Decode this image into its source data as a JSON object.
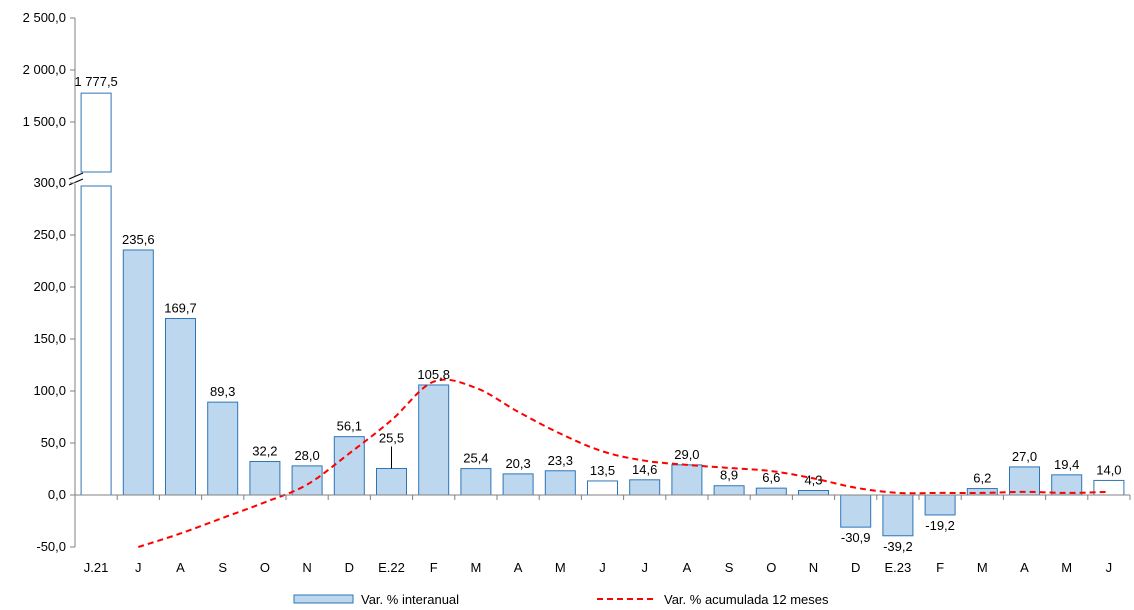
{
  "chart_data": {
    "type": "bar",
    "categories": [
      "J.21",
      "J",
      "A",
      "S",
      "O",
      "N",
      "D",
      "E.22",
      "F",
      "M",
      "A",
      "M",
      "J",
      "J",
      "A",
      "S",
      "O",
      "N",
      "D",
      "E.23",
      "F",
      "M",
      "A",
      "M",
      "J"
    ],
    "series": [
      {
        "name": "Var. % interanual",
        "type": "bar",
        "values": [
          1777.5,
          235.6,
          169.7,
          89.3,
          32.2,
          28.0,
          56.1,
          25.5,
          105.8,
          25.4,
          20.3,
          23.3,
          13.5,
          14.6,
          29.0,
          8.9,
          6.6,
          4.3,
          -30.9,
          -39.2,
          -19.2,
          6.2,
          27.0,
          19.4,
          14.0
        ],
        "labels": [
          "1 777,5",
          "235,6",
          "169,7",
          "89,3",
          "32,2",
          "28,0",
          "56,1",
          "25,5",
          "105,8",
          "25,4",
          "20,3",
          "23,3",
          "13,5",
          "14,6",
          "29,0",
          "8,9",
          "6,6",
          "4,3",
          "-30,9",
          "-39,2",
          "-19,2",
          "6,2",
          "27,0",
          "19,4",
          "14,0"
        ],
        "hollow": [
          true,
          false,
          false,
          false,
          false,
          false,
          false,
          false,
          false,
          false,
          false,
          false,
          true,
          false,
          false,
          false,
          false,
          false,
          false,
          false,
          false,
          false,
          false,
          false,
          true
        ]
      },
      {
        "name": "Var. % acumulada 12 meses",
        "type": "line",
        "values": [
          null,
          -50,
          -37,
          -22,
          -7,
          10,
          40,
          72,
          109,
          103,
          80,
          59,
          42,
          33,
          29,
          26,
          23,
          16,
          7,
          2,
          2,
          2,
          3,
          2,
          3
        ]
      }
    ],
    "y_ticks_lower": [
      "-50,0",
      "0,0",
      "50,0",
      "100,0",
      "150,0",
      "200,0",
      "250,0",
      "300,0"
    ],
    "y_ticks_upper": [
      "1 500,0",
      "2 000,0",
      "2 500,0"
    ],
    "ylim_lower": [
      -50,
      300
    ],
    "ylim_upper": [
      1300,
      2500
    ],
    "axis_break": true,
    "legend_position": "bottom",
    "colors": {
      "bar_fill": "#bdd7ee",
      "bar_stroke": "#2e75b6",
      "hollow_fill": "#ffffff",
      "line": "#ff0000",
      "axis": "#808080"
    }
  }
}
